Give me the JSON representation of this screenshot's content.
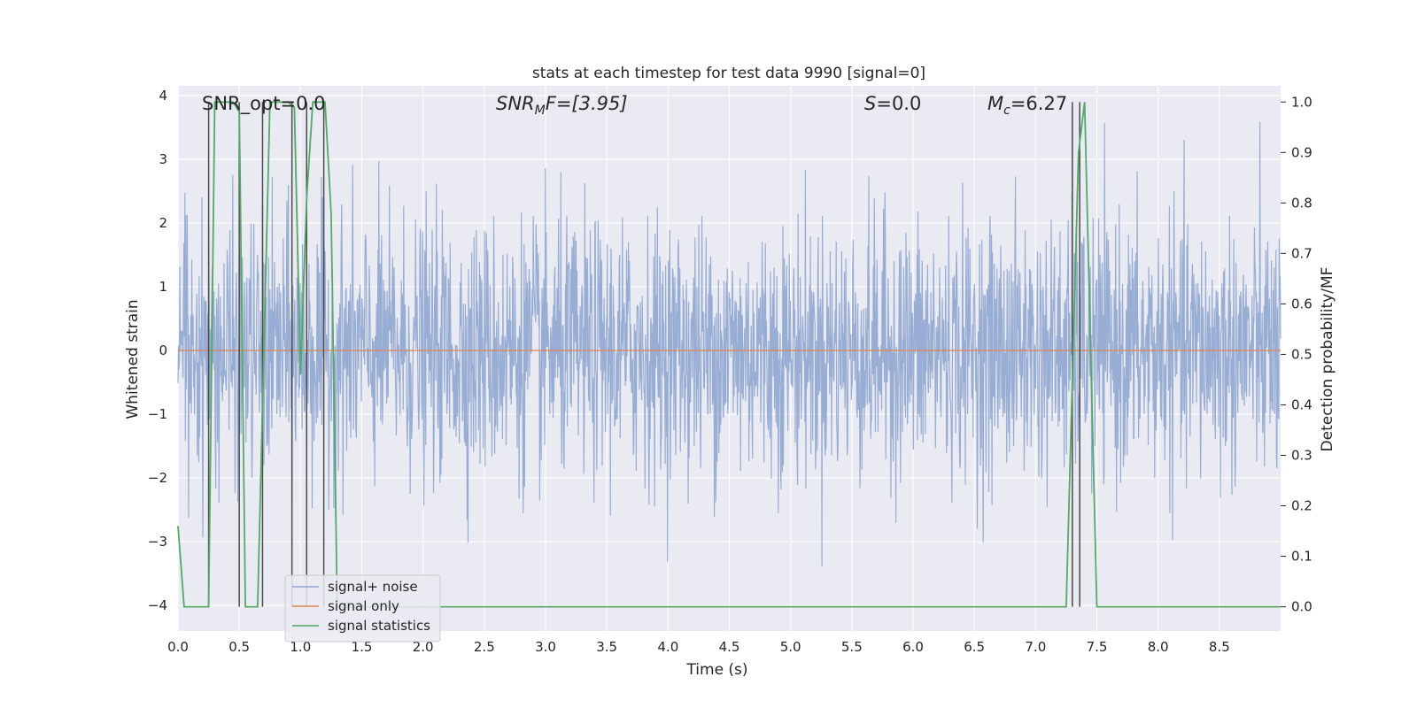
{
  "chart_data": {
    "type": "line",
    "title": "stats at each timestep for test data 9990 [signal=0]",
    "xlabel": "Time (s)",
    "ylabel": "Whitened strain",
    "ylabel_right": "Detection probability/MF",
    "xlim": [
      0.0,
      9.0
    ],
    "ylim": [
      -4.4,
      4.15
    ],
    "ylim_right": [
      -0.048,
      1.032
    ],
    "x_ticks": [
      "0.0",
      "0.5",
      "1.0",
      "1.5",
      "2.0",
      "2.5",
      "3.0",
      "3.5",
      "4.0",
      "4.5",
      "5.0",
      "5.5",
      "6.0",
      "6.5",
      "7.0",
      "7.5",
      "8.0",
      "8.5"
    ],
    "y_ticks": [
      "−4",
      "−3",
      "−2",
      "−1",
      "0",
      "1",
      "2",
      "3",
      "4"
    ],
    "y_ticks_right": [
      "0.0",
      "0.1",
      "0.2",
      "0.3",
      "0.4",
      "0.5",
      "0.6",
      "0.7",
      "0.8",
      "0.9",
      "1.0"
    ],
    "grid": true,
    "legend_position": "lower-left",
    "annotations": {
      "snr_opt": "SNR_opt=0.0",
      "snr_mf_base": "SNR",
      "snr_mf_sub": "M",
      "snr_mf_rest": "F=[3.95]",
      "s_base": "S",
      "s_rest": "=0.0",
      "mc_base": "M",
      "mc_sub": "c",
      "mc_rest": "=6.27"
    },
    "series": [
      {
        "name": "signal+ noise",
        "color": "#8fa6cf",
        "description_values": "noise band approx ±1.8 with spikes up to about ±3.8"
      },
      {
        "name": "signal only",
        "color": "#dd8452",
        "x": [
          0.0,
          9.0
        ],
        "y": [
          0.0,
          0.0
        ]
      },
      {
        "name": "signal statistics",
        "color": "#55a868",
        "axis": "right",
        "x": [
          0.0,
          0.05,
          0.15,
          0.25,
          0.3,
          0.45,
          0.5,
          0.55,
          0.65,
          0.75,
          0.9,
          0.95,
          1.0,
          1.05,
          1.1,
          1.2,
          1.25,
          1.3,
          1.35,
          1.45,
          7.25,
          7.35,
          7.4,
          7.5,
          9.0
        ],
        "y": [
          0.16,
          0.0,
          0.0,
          0.0,
          1.0,
          1.0,
          0.98,
          0.0,
          0.0,
          1.0,
          1.0,
          0.99,
          0.46,
          0.81,
          1.0,
          1.0,
          0.78,
          0.0,
          0.0,
          0.0,
          0.0,
          0.9,
          1.0,
          0.0,
          0.0
        ]
      }
    ],
    "vlines_right": {
      "color": "#4a4a4a",
      "x": [
        0.25,
        0.5,
        0.69,
        0.93,
        1.05,
        1.19,
        7.3,
        7.36
      ],
      "ymin": 0.0,
      "ymax": 1.0
    }
  }
}
